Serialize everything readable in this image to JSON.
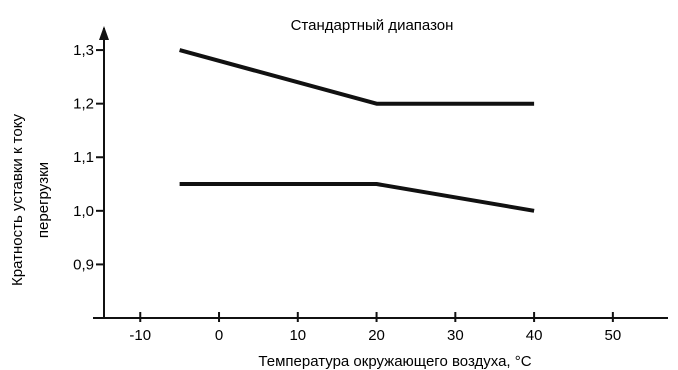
{
  "chart_data": {
    "type": "line",
    "title": "Стандартный диапазон",
    "xlabel": "Температура окружающего воздуха, °C",
    "ylabel_line1": "Кратность уставки к току",
    "ylabel_line2": "перегрузки",
    "x_ticks": [
      -10,
      0,
      10,
      20,
      30,
      40,
      50
    ],
    "x_tick_labels": [
      "-10",
      "0",
      "10",
      "20",
      "30",
      "40",
      "50"
    ],
    "y_ticks": [
      0.9,
      1.0,
      1.1,
      1.2,
      1.3
    ],
    "y_tick_labels": [
      "0,9",
      "1,0",
      "1,1",
      "1,2",
      "1,3"
    ],
    "xlim": [
      -16,
      57
    ],
    "ylim": [
      0.8,
      1.33
    ],
    "grid": false,
    "series": [
      {
        "x": [
          -5,
          20,
          40
        ],
        "y": [
          1.3,
          1.2,
          1.2
        ]
      },
      {
        "x": [
          -5,
          20,
          40
        ],
        "y": [
          1.05,
          1.05,
          1.0
        ]
      }
    ]
  }
}
